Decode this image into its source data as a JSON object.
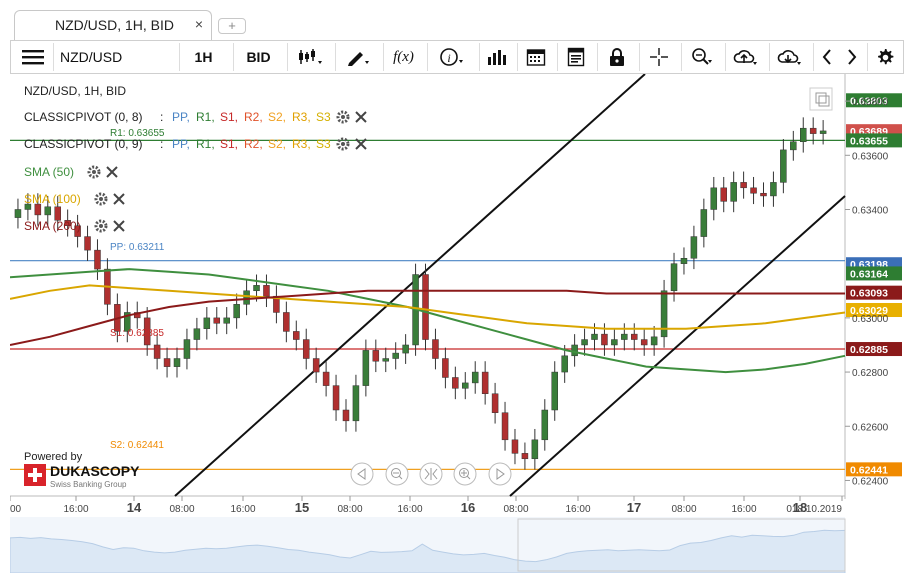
{
  "tab": {
    "title": "NZD/USD, 1H, BID",
    "close": "×",
    "new": "+"
  },
  "toolbar": {
    "menu_icon": "menu-icon",
    "instrument": "NZD/USD",
    "period": "1H",
    "side": "BID",
    "fx_label": "f(x)",
    "info_label": "i"
  },
  "legend": {
    "title": "NZD/USD, 1H, BID",
    "pivots": [
      {
        "name": "CLASSICPIVOT (0, 8)",
        "sep": ":",
        "levels": [
          "PP,",
          "R1,",
          "S1,",
          "R2,",
          "S2,",
          "R3,",
          "S3"
        ]
      },
      {
        "name": "CLASSICPIVOT (0, 9)",
        "sep": ":",
        "levels": [
          "PP,",
          "R1,",
          "S1,",
          "R2,",
          "S2,",
          "R3,",
          "S3"
        ]
      }
    ],
    "smas": [
      "SMA (50)",
      "SMA (100)",
      "SMA (200)"
    ]
  },
  "colors": {
    "up": "#3a7d3a",
    "down": "#b03030",
    "pp": "#4a84c4",
    "r1": "#2e7d32",
    "s1": "#c62828",
    "r2": "#e0522a",
    "s2": "#f0a020",
    "r3": "#e0a000",
    "s3": "#d4b000",
    "sma50": "#3f8f3f",
    "sma100": "#d9a600",
    "sma200": "#8b1a1a"
  },
  "level_labels": {
    "r1": "R1: 0.63655",
    "pp": "PP: 0.63211",
    "s1": "S1: 0.62885",
    "s2": "S2: 0.62441"
  },
  "price_badges": [
    {
      "text": "0.63803",
      "color": "#2e7d32"
    },
    {
      "text": "0.63689",
      "color": "#d0504b"
    },
    {
      "text": "0.63655",
      "color": "#2e7d32"
    },
    {
      "text": "0.63198",
      "color": "#3b6fb8"
    },
    {
      "text": "0.63164",
      "color": "#2e7d32"
    },
    {
      "text": "0.63093",
      "color": "#8b1a1a"
    },
    {
      "text": "0.63029",
      "color": "#e8b000"
    },
    {
      "text": "0.62885",
      "color": "#8b1a1a"
    },
    {
      "text": "0.62441",
      "color": "#f08a00"
    }
  ],
  "y_ticks": [
    "0.63800",
    "0.63600",
    "0.63400",
    "0.63000",
    "0.62800",
    "0.62600",
    "0.62400"
  ],
  "x_ticks": [
    "00",
    "16:00",
    "14",
    "08:00",
    "16:00",
    "15",
    "08:00",
    "16:00",
    "16",
    "08:00",
    "16:00",
    "17",
    "08:00",
    "16:00",
    "18",
    "018.10.2019"
  ],
  "branding": {
    "powered_by": "Powered by",
    "brand": "DUKASCOPY",
    "tagline": "Swiss Banking Group"
  },
  "chart_data": {
    "type": "candlestick",
    "instrument": "NZD/USD",
    "timeframe": "1H",
    "y_range": [
      0.6235,
      0.639
    ],
    "closes": [
      0.634,
      0.6342,
      0.6338,
      0.6341,
      0.6336,
      0.6334,
      0.633,
      0.6325,
      0.6318,
      0.6305,
      0.6295,
      0.6302,
      0.63,
      0.629,
      0.6285,
      0.6282,
      0.6285,
      0.6292,
      0.6296,
      0.63,
      0.6298,
      0.63,
      0.6305,
      0.631,
      0.6312,
      0.6308,
      0.6302,
      0.6295,
      0.6292,
      0.6285,
      0.628,
      0.6275,
      0.6266,
      0.6262,
      0.6275,
      0.6288,
      0.6284,
      0.6285,
      0.6287,
      0.629,
      0.6316,
      0.6292,
      0.6285,
      0.6278,
      0.6274,
      0.6276,
      0.628,
      0.6272,
      0.6265,
      0.6255,
      0.625,
      0.6248,
      0.6255,
      0.6266,
      0.628,
      0.6286,
      0.629,
      0.6292,
      0.6294,
      0.629,
      0.6292,
      0.6294,
      0.6292,
      0.629,
      0.6293,
      0.631,
      0.632,
      0.6322,
      0.633,
      0.634,
      0.6348,
      0.6343,
      0.635,
      0.6348,
      0.6346,
      0.6345,
      0.635,
      0.6362,
      0.6365,
      0.637,
      0.6368,
      0.6369
    ],
    "sma50": [
      0.6315,
      0.6316,
      0.6317,
      0.6318,
      0.6317,
      0.6316,
      0.6314,
      0.6312,
      0.631,
      0.6307,
      0.6304,
      0.63,
      0.6296,
      0.6292,
      0.6288,
      0.6285,
      0.6282,
      0.6281,
      0.628,
      0.6281,
      0.6283,
      0.6286
    ],
    "sma100": [
      0.6307,
      0.631,
      0.6312,
      0.6311,
      0.631,
      0.6309,
      0.6308,
      0.6307,
      0.6306,
      0.6305,
      0.6304,
      0.6302,
      0.63,
      0.6298,
      0.6297,
      0.6296,
      0.6296,
      0.6296,
      0.6297,
      0.6298,
      0.63,
      0.6302
    ],
    "sma200": [
      0.629,
      0.6293,
      0.6297,
      0.6301,
      0.6304,
      0.6306,
      0.6307,
      0.6308,
      0.6309,
      0.631,
      0.631,
      0.631,
      0.631,
      0.631,
      0.631,
      0.6309,
      0.6309,
      0.6309,
      0.6309,
      0.6309,
      0.6309,
      0.6309
    ],
    "pivot_levels": {
      "R1": 0.63655,
      "PP": 0.63211,
      "S1": 0.62885,
      "S2": 0.62441
    }
  }
}
